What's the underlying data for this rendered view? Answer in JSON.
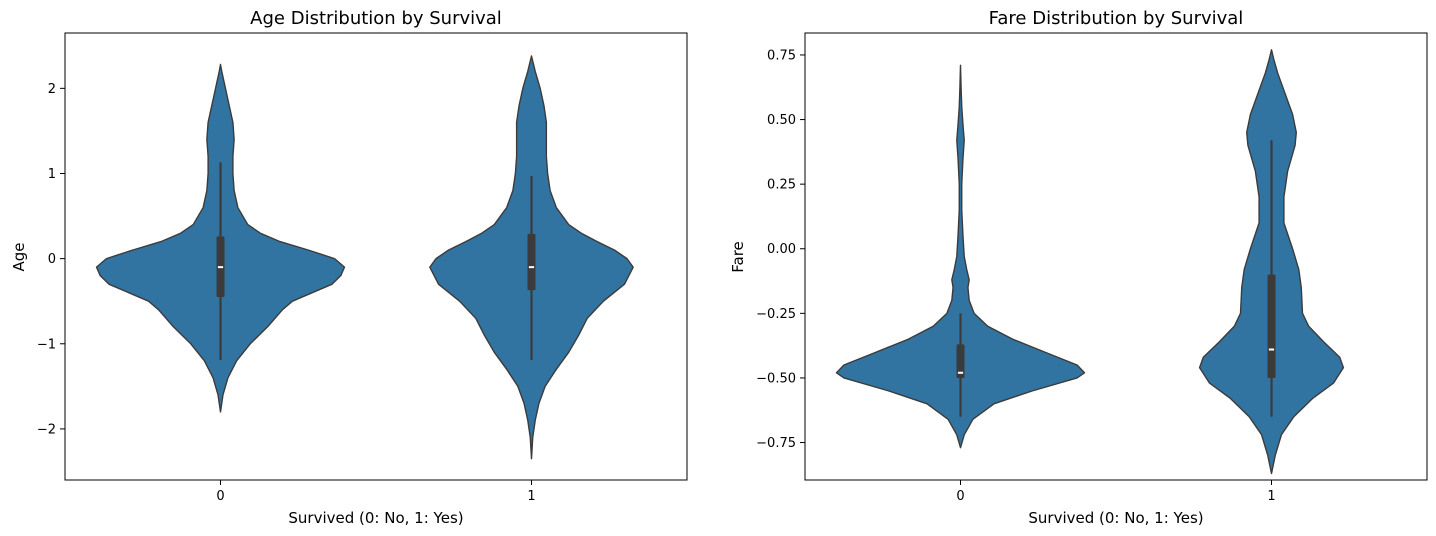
{
  "chart_data": [
    {
      "type": "violin",
      "title": "Age Distribution by Survival",
      "xlabel": "Survived (0: No, 1: Yes)",
      "ylabel": "Age",
      "categories": [
        "0",
        "1"
      ],
      "ylim": [
        -2.6,
        2.65
      ],
      "yticks": [
        -2,
        -1,
        0,
        1,
        2
      ],
      "ytick_labels": [
        "−2",
        "−1",
        "0",
        "1",
        "2"
      ],
      "color": "#3274a1",
      "edge_color": "#3b3b3b",
      "violins": [
        {
          "category": "0",
          "min": -1.8,
          "max": 2.28,
          "whisker_low": -1.19,
          "whisker_high": 1.13,
          "q1": -0.45,
          "median": -0.1,
          "q3": 0.26,
          "density": [
            [
              -1.8,
              0
            ],
            [
              -1.6,
              0.02
            ],
            [
              -1.4,
              0.06
            ],
            [
              -1.2,
              0.13
            ],
            [
              -1.0,
              0.24
            ],
            [
              -0.8,
              0.38
            ],
            [
              -0.6,
              0.5
            ],
            [
              -0.5,
              0.58
            ],
            [
              -0.4,
              0.74
            ],
            [
              -0.3,
              0.9
            ],
            [
              -0.2,
              0.97
            ],
            [
              -0.1,
              1.0
            ],
            [
              0.0,
              0.92
            ],
            [
              0.1,
              0.71
            ],
            [
              0.2,
              0.48
            ],
            [
              0.3,
              0.32
            ],
            [
              0.4,
              0.22
            ],
            [
              0.6,
              0.14
            ],
            [
              0.8,
              0.11
            ],
            [
              1.0,
              0.1
            ],
            [
              1.2,
              0.1
            ],
            [
              1.4,
              0.11
            ],
            [
              1.6,
              0.1
            ],
            [
              1.8,
              0.07
            ],
            [
              2.0,
              0.04
            ],
            [
              2.2,
              0.01
            ],
            [
              2.28,
              0
            ]
          ]
        },
        {
          "category": "1",
          "min": -2.35,
          "max": 2.38,
          "whisker_low": -1.19,
          "whisker_high": 0.97,
          "q1": -0.37,
          "median": -0.1,
          "q3": 0.29,
          "density": [
            [
              -2.35,
              0
            ],
            [
              -2.1,
              0.01
            ],
            [
              -1.9,
              0.03
            ],
            [
              -1.7,
              0.06
            ],
            [
              -1.5,
              0.11
            ],
            [
              -1.3,
              0.2
            ],
            [
              -1.1,
              0.3
            ],
            [
              -0.9,
              0.38
            ],
            [
              -0.7,
              0.45
            ],
            [
              -0.5,
              0.58
            ],
            [
              -0.3,
              0.75
            ],
            [
              -0.1,
              0.82
            ],
            [
              0.0,
              0.77
            ],
            [
              0.1,
              0.67
            ],
            [
              0.2,
              0.53
            ],
            [
              0.3,
              0.4
            ],
            [
              0.4,
              0.3
            ],
            [
              0.6,
              0.2
            ],
            [
              0.8,
              0.15
            ],
            [
              1.0,
              0.13
            ],
            [
              1.2,
              0.12
            ],
            [
              1.4,
              0.12
            ],
            [
              1.6,
              0.12
            ],
            [
              1.8,
              0.1
            ],
            [
              2.0,
              0.07
            ],
            [
              2.2,
              0.03
            ],
            [
              2.38,
              0
            ]
          ]
        }
      ]
    },
    {
      "type": "violin",
      "title": "Fare Distribution by Survival",
      "xlabel": "Survived (0: No, 1: Yes)",
      "ylabel": "Fare",
      "categories": [
        "0",
        "1"
      ],
      "ylim": [
        -0.895,
        0.835
      ],
      "yticks": [
        -0.75,
        -0.5,
        -0.25,
        0.0,
        0.25,
        0.5,
        0.75
      ],
      "ytick_labels": [
        "−0.75",
        "−0.50",
        "−0.25",
        "0.00",
        "0.25",
        "0.50",
        "0.75"
      ],
      "color": "#3274a1",
      "edge_color": "#3b3b3b",
      "violins": [
        {
          "category": "0",
          "min": -0.77,
          "max": 0.71,
          "whisker_low": -0.65,
          "whisker_high": -0.25,
          "q1": -0.5,
          "median": -0.48,
          "q3": -0.37,
          "density": [
            [
              -0.77,
              0
            ],
            [
              -0.72,
              0.03
            ],
            [
              -0.66,
              0.1
            ],
            [
              -0.6,
              0.27
            ],
            [
              -0.55,
              0.58
            ],
            [
              -0.5,
              0.94
            ],
            [
              -0.48,
              1.0
            ],
            [
              -0.45,
              0.94
            ],
            [
              -0.4,
              0.68
            ],
            [
              -0.35,
              0.42
            ],
            [
              -0.3,
              0.22
            ],
            [
              -0.25,
              0.11
            ],
            [
              -0.2,
              0.07
            ],
            [
              -0.15,
              0.06
            ],
            [
              -0.12,
              0.07
            ],
            [
              -0.08,
              0.05
            ],
            [
              -0.03,
              0.03
            ],
            [
              0.05,
              0.02
            ],
            [
              0.15,
              0.01
            ],
            [
              0.25,
              0.01
            ],
            [
              0.35,
              0.02
            ],
            [
              0.42,
              0.03
            ],
            [
              0.48,
              0.02
            ],
            [
              0.55,
              0.01
            ],
            [
              0.62,
              0.005
            ],
            [
              0.71,
              0
            ]
          ]
        },
        {
          "category": "1",
          "min": -0.87,
          "max": 0.77,
          "whisker_low": -0.65,
          "whisker_high": 0.42,
          "q1": -0.5,
          "median": -0.39,
          "q3": -0.1,
          "density": [
            [
              -0.87,
              0
            ],
            [
              -0.8,
              0.03
            ],
            [
              -0.72,
              0.08
            ],
            [
              -0.65,
              0.18
            ],
            [
              -0.58,
              0.33
            ],
            [
              -0.52,
              0.5
            ],
            [
              -0.46,
              0.58
            ],
            [
              -0.42,
              0.55
            ],
            [
              -0.36,
              0.42
            ],
            [
              -0.3,
              0.3
            ],
            [
              -0.25,
              0.25
            ],
            [
              -0.15,
              0.24
            ],
            [
              -0.08,
              0.22
            ],
            [
              0.0,
              0.17
            ],
            [
              0.1,
              0.1
            ],
            [
              0.2,
              0.1
            ],
            [
              0.3,
              0.13
            ],
            [
              0.4,
              0.19
            ],
            [
              0.45,
              0.2
            ],
            [
              0.52,
              0.17
            ],
            [
              0.6,
              0.11
            ],
            [
              0.68,
              0.05
            ],
            [
              0.73,
              0.02
            ],
            [
              0.77,
              0
            ]
          ]
        }
      ]
    }
  ]
}
